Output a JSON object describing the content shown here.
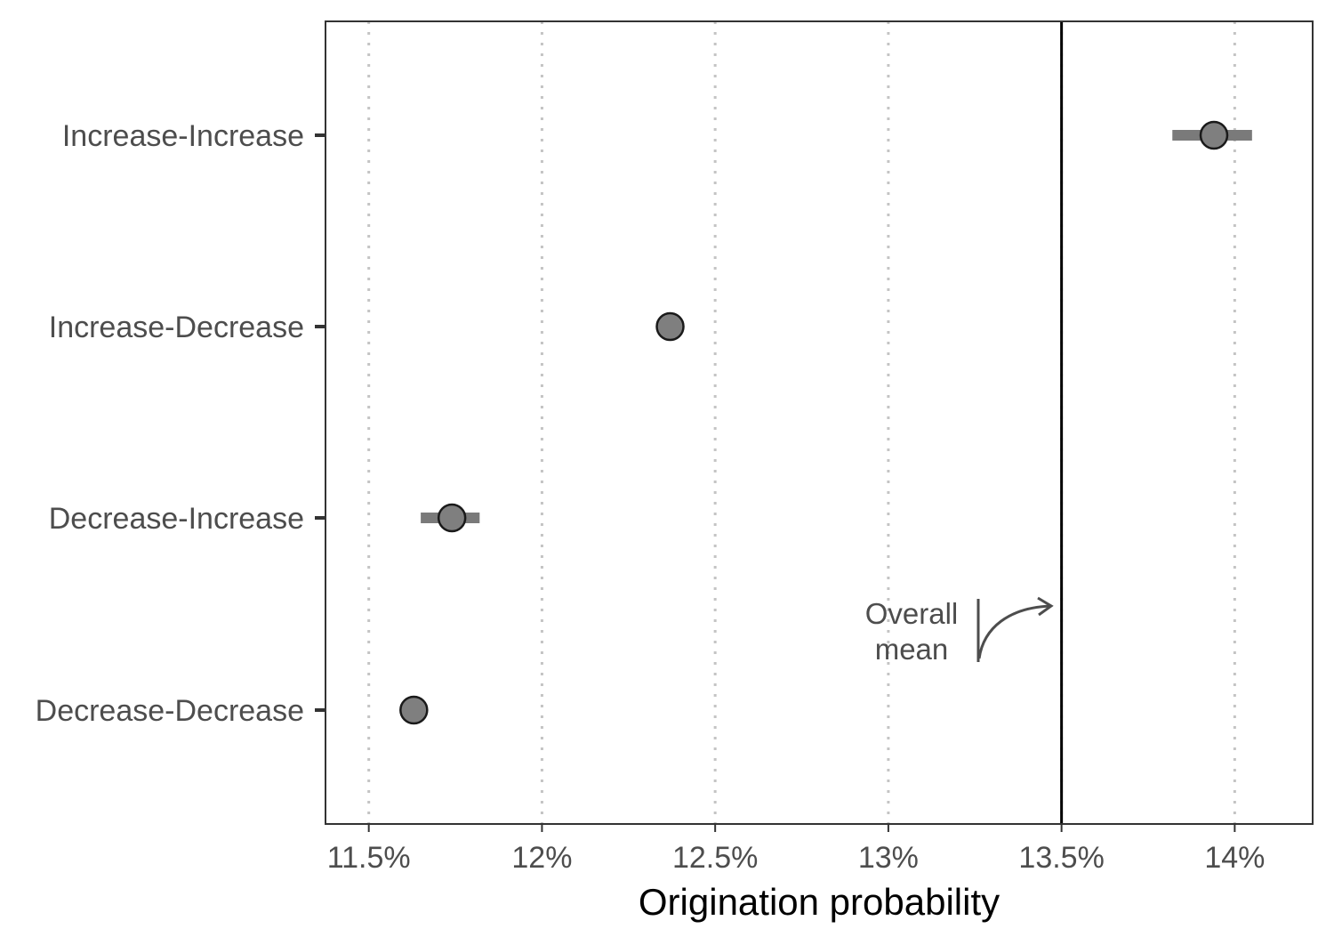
{
  "chart_data": {
    "type": "scatter",
    "title": "",
    "xlabel": "Origination probability",
    "ylabel": "",
    "xlim": [
      11.375,
      14.225
    ],
    "x_ticks": [
      11.5,
      12,
      12.5,
      13,
      13.5,
      14
    ],
    "x_tick_labels": [
      "11.5%",
      "12%",
      "12.5%",
      "13%",
      "13.5%",
      "14%"
    ],
    "categories": [
      "Increase-Increase",
      "Increase-Decrease",
      "Decrease-Increase",
      "Decrease-Decrease"
    ],
    "points": [
      {
        "category": "Increase-Increase",
        "value": 13.94,
        "ci_low": 13.82,
        "ci_high": 14.05
      },
      {
        "category": "Increase-Decrease",
        "value": 12.37,
        "ci_low": 12.35,
        "ci_high": 12.39
      },
      {
        "category": "Decrease-Increase",
        "value": 11.74,
        "ci_low": 11.65,
        "ci_high": 11.82
      },
      {
        "category": "Decrease-Decrease",
        "value": 11.63,
        "ci_low": 11.62,
        "ci_high": 11.64
      }
    ],
    "reference_line": {
      "value": 13.5
    },
    "annotation": {
      "lines": [
        "Overall",
        "mean"
      ]
    },
    "grid": "vertical-dotted",
    "colors": {
      "point_fill": "#7f7f7f",
      "point_stroke": "#1a1a1a",
      "interval": "#7a7a7a",
      "grid": "#c4c4c4",
      "reference_line": "#000000",
      "panel_border": "#333333",
      "annotation": "#4d4d4d"
    }
  }
}
